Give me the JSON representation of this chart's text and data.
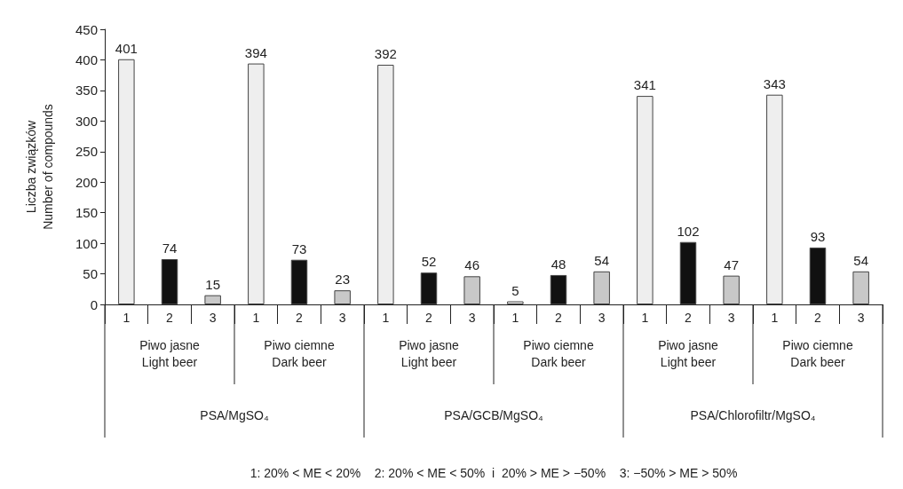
{
  "chart_data": {
    "type": "bar",
    "ylabel": "Liczba związków\nNumber of compounds",
    "categories": [
      "1",
      "2",
      "3",
      "1",
      "2",
      "3",
      "1",
      "2",
      "3",
      "1",
      "2",
      "3",
      "1",
      "2",
      "3",
      "1",
      "2",
      "3"
    ],
    "values": [
      401,
      74,
      15,
      394,
      73,
      23,
      392,
      52,
      46,
      5,
      48,
      54,
      341,
      102,
      47,
      343,
      93,
      54
    ],
    "colors": [
      "#eeeeee",
      "#111111",
      "#c8c8c8",
      "#eeeeee",
      "#111111",
      "#c8c8c8",
      "#eeeeee",
      "#111111",
      "#c8c8c8",
      "#eeeeee",
      "#111111",
      "#c8c8c8",
      "#eeeeee",
      "#111111",
      "#c8c8c8",
      "#eeeeee",
      "#111111",
      "#c8c8c8"
    ],
    "data_labels": true,
    "ylim": [
      0,
      450
    ],
    "yticks": [
      0,
      50,
      100,
      150,
      200,
      250,
      300,
      350,
      400,
      450
    ],
    "grid": false,
    "annotations": [
      "Piwo jasne\nLight beer",
      "Piwo ciemne\nDark beer",
      "Piwo jasne\nLight beer",
      "Piwo ciemne\nDark beer",
      "Piwo jasne\nLight beer",
      "Piwo ciemne\nDark beer",
      "PSA/MgSO₄",
      "PSA/GCB/MgSO₄",
      "PSA/Chlorofiltr/MgSO₄",
      "1: 20% < ME < 20%    2: 20% < ME < 50%  i  20% > ME > −50%    3: −50% > ME > 50%"
    ]
  }
}
